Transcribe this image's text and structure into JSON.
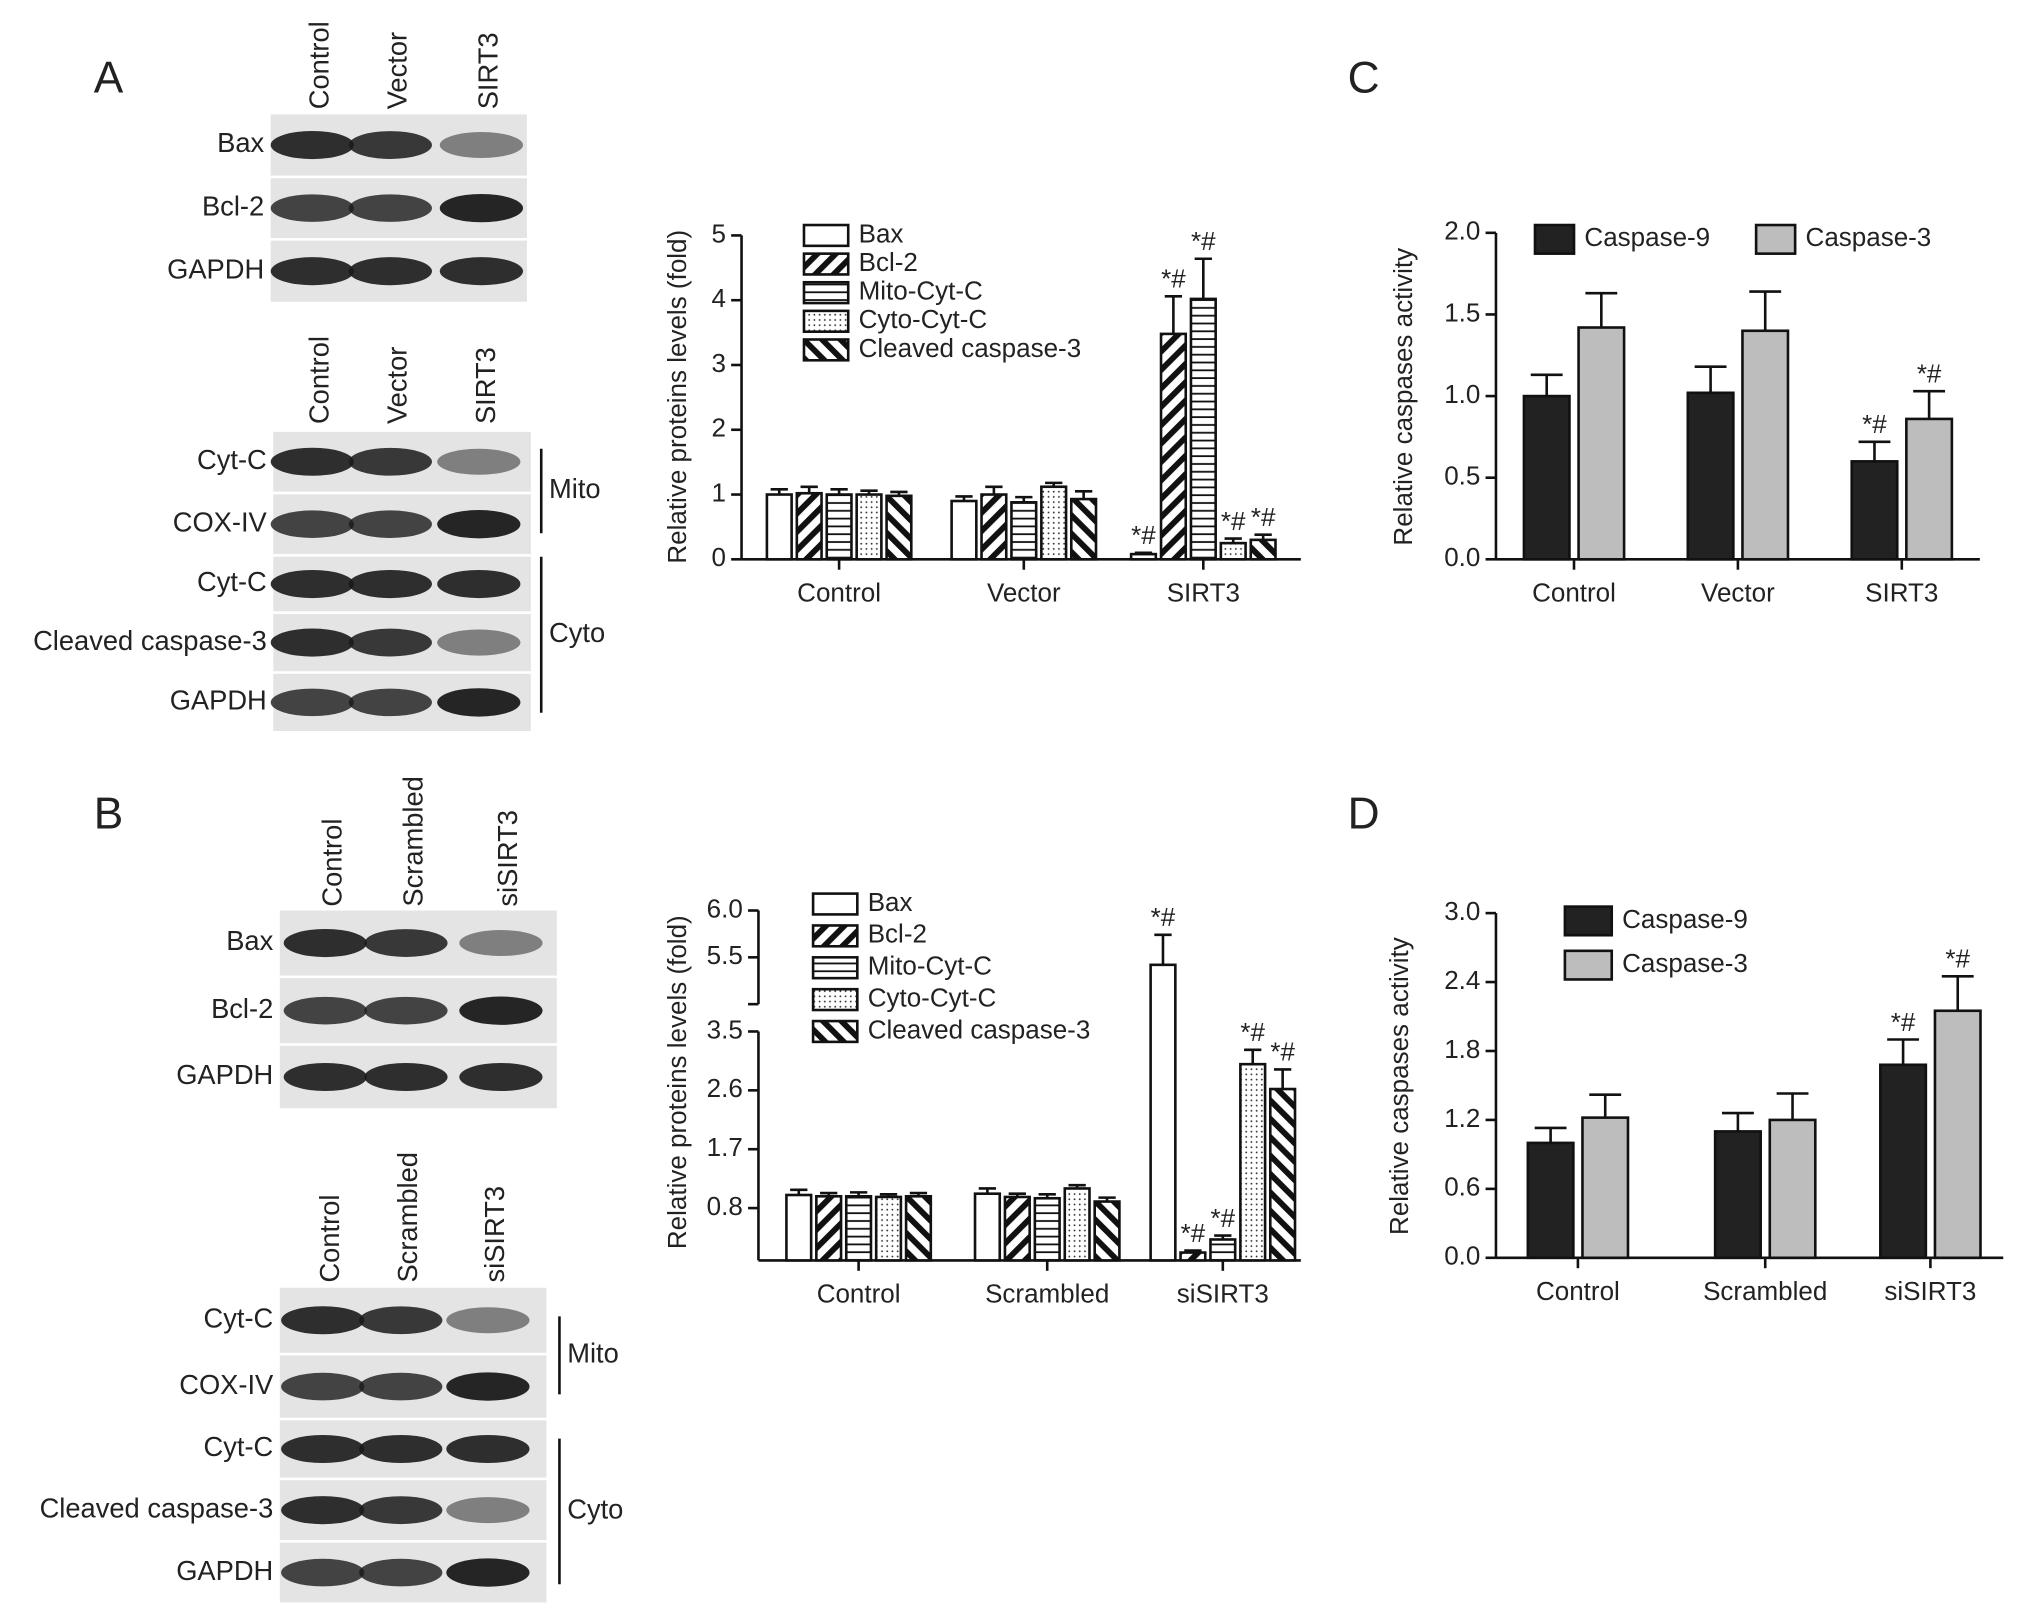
{
  "panels": [
    "A",
    "B",
    "C",
    "D"
  ],
  "blots": [
    {
      "lanes": [
        "Control",
        "Vector",
        "SIRT3"
      ],
      "rows": [
        "Bax",
        "Bcl-2",
        "GAPDH"
      ]
    },
    {
      "lanes": [
        "Control",
        "Vector",
        "SIRT3"
      ],
      "rows": [
        "Cyt-C",
        "COX-IV",
        "Cyt-C",
        "Cleaved caspase-3",
        "GAPDH"
      ],
      "groups": [
        "Mito",
        "Cyto"
      ]
    },
    {
      "lanes": [
        "Control",
        "Scrambled",
        "siSIRT3"
      ],
      "rows": [
        "Bax",
        "Bcl-2",
        "GAPDH"
      ]
    },
    {
      "lanes": [
        "Control",
        "Scrambled",
        "siSIRT3"
      ],
      "rows": [
        "Cyt-C",
        "COX-IV",
        "Cyt-C",
        "Cleaved caspase-3",
        "GAPDH"
      ],
      "groups": [
        "Mito",
        "Cyto"
      ]
    }
  ],
  "chart_data": [
    {
      "type": "bar",
      "y_label": "Relative proteins levels (fold)",
      "categories": [
        "Control",
        "Vector",
        "SIRT3"
      ],
      "ylim": [
        0,
        5
      ],
      "yticks": [
        0,
        1,
        2,
        3,
        4,
        5
      ],
      "legend": "top-left",
      "series": [
        {
          "name": "Bax",
          "color": "#ffffff",
          "pattern": "none",
          "values": [
            1.0,
            0.9,
            0.08
          ],
          "errors": [
            0.08,
            0.07,
            0.02
          ],
          "significance": [
            null,
            null,
            "*#"
          ]
        },
        {
          "name": "Bcl-2",
          "color": "#ffffff",
          "pattern": "diagonal-back",
          "values": [
            1.02,
            1.0,
            3.48
          ],
          "errors": [
            0.1,
            0.12,
            0.58
          ],
          "significance": [
            null,
            null,
            "*#"
          ]
        },
        {
          "name": "Mito-Cyt-C",
          "color": "#ffffff",
          "pattern": "horizontal",
          "values": [
            1.0,
            0.88,
            4.02
          ],
          "errors": [
            0.08,
            0.08,
            0.62
          ],
          "significance": [
            null,
            null,
            "*#"
          ]
        },
        {
          "name": "Cyto-Cyt-C",
          "color": "#ffffff",
          "pattern": "dots",
          "values": [
            1.0,
            1.12,
            0.25
          ],
          "errors": [
            0.06,
            0.06,
            0.07
          ],
          "significance": [
            null,
            null,
            "*#"
          ]
        },
        {
          "name": "Cleaved caspase-3",
          "color": "#ffffff",
          "pattern": "diagonal",
          "values": [
            0.98,
            0.93,
            0.3
          ],
          "errors": [
            0.06,
            0.12,
            0.08
          ],
          "significance": [
            null,
            null,
            "*#"
          ]
        }
      ]
    },
    {
      "type": "bar",
      "y_label": "Relative proteins levels (fold)",
      "categories": [
        "Control",
        "Scrambled",
        "siSIRT3"
      ],
      "ylim": [
        0,
        6
      ],
      "axis_break": [
        3.5,
        5
      ],
      "yticks": [
        0.8,
        1.7,
        2.6,
        3.5,
        5.5,
        {
          "value": 6,
          "label": "6.0"
        }
      ],
      "legend": "top-left",
      "series": [
        {
          "name": "Bax",
          "color": "#ffffff",
          "pattern": "none",
          "values": [
            1.0,
            1.02,
            5.42
          ],
          "errors": [
            0.08,
            0.08,
            0.32
          ],
          "significance": [
            null,
            null,
            "*#"
          ]
        },
        {
          "name": "Bcl-2",
          "color": "#ffffff",
          "pattern": "diagonal-back",
          "values": [
            0.98,
            0.97,
            0.12
          ],
          "errors": [
            0.05,
            0.05,
            0.03
          ],
          "significance": [
            null,
            null,
            "*#"
          ]
        },
        {
          "name": "Mito-Cyt-C",
          "color": "#ffffff",
          "pattern": "horizontal",
          "values": [
            0.98,
            0.95,
            0.32
          ],
          "errors": [
            0.06,
            0.06,
            0.06
          ],
          "significance": [
            null,
            null,
            "*#"
          ]
        },
        {
          "name": "Cyto-Cyt-C",
          "color": "#ffffff",
          "pattern": "dots",
          "values": [
            0.97,
            1.1,
            3.0
          ],
          "errors": [
            0.04,
            0.05,
            0.22
          ],
          "significance": [
            null,
            null,
            "*#"
          ]
        },
        {
          "name": "Cleaved caspase-3",
          "color": "#ffffff",
          "pattern": "diagonal",
          "values": [
            0.98,
            0.9,
            2.62
          ],
          "errors": [
            0.05,
            0.06,
            0.3
          ],
          "significance": [
            null,
            null,
            "*#"
          ]
        }
      ]
    },
    {
      "type": "bar",
      "y_label": "Relative caspases activity",
      "categories": [
        "Control",
        "Vector",
        "SIRT3"
      ],
      "ylim": [
        0,
        2
      ],
      "yticks": [
        {
          "value": 0,
          "label": "0.0"
        },
        0.5,
        {
          "value": 1,
          "label": "1.0"
        },
        1.5,
        {
          "value": 2,
          "label": "2.0"
        }
      ],
      "legend": "top",
      "series": [
        {
          "name": "Caspase-9",
          "color": "#222222",
          "pattern": "none",
          "values": [
            1.0,
            1.02,
            0.6
          ],
          "errors": [
            0.13,
            0.16,
            0.12
          ],
          "significance": [
            null,
            null,
            "*#"
          ]
        },
        {
          "name": "Caspase-3",
          "color": "#bdbdbd",
          "pattern": "none",
          "values": [
            1.42,
            1.4,
            0.86
          ],
          "errors": [
            0.21,
            0.24,
            0.17
          ],
          "significance": [
            null,
            null,
            "*#"
          ]
        }
      ]
    },
    {
      "type": "bar",
      "y_label": "Relative caspases activity",
      "categories": [
        "Control",
        "Scrambled",
        "siSIRT3"
      ],
      "ylim": [
        0,
        3
      ],
      "yticks": [
        {
          "value": 0,
          "label": "0.0"
        },
        0.6,
        1.2,
        1.8,
        2.4,
        {
          "value": 3,
          "label": "3.0"
        }
      ],
      "legend": "top-left",
      "series": [
        {
          "name": "Caspase-9",
          "color": "#222222",
          "pattern": "none",
          "values": [
            1.0,
            1.1,
            1.68
          ],
          "errors": [
            0.13,
            0.16,
            0.22
          ],
          "significance": [
            null,
            null,
            "*#"
          ]
        },
        {
          "name": "Caspase-3",
          "color": "#bdbdbd",
          "pattern": "none",
          "values": [
            1.22,
            1.2,
            2.15
          ],
          "errors": [
            0.2,
            0.23,
            0.3
          ],
          "significance": [
            null,
            null,
            "*#"
          ]
        }
      ]
    }
  ]
}
